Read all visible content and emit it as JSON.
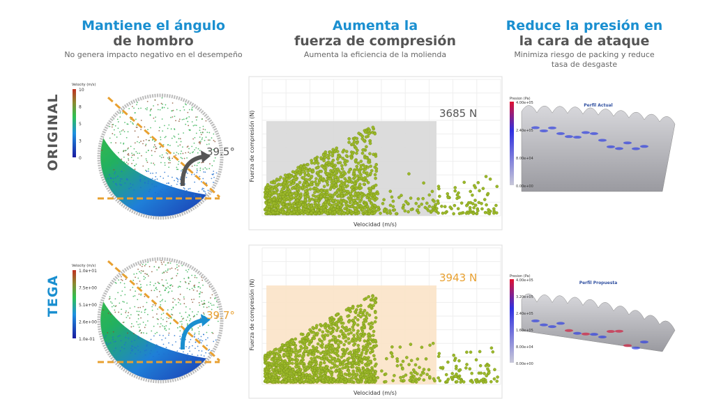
{
  "header": {
    "columns": [
      {
        "title_line1": "Mantiene el ángulo",
        "title_line2": "de hombro",
        "subtitle": "No genera impacto negativo en el desempeño"
      },
      {
        "title_line1": "Aumenta la",
        "title_line2": "fuerza de compresión",
        "subtitle": "Aumenta la eficiencia de la molienda"
      },
      {
        "title_line1": "Reduce la presión en",
        "title_line2": "la cara de ataque",
        "subtitle": "Minimiza riesgo de packing y reduce tasa de desgaste"
      }
    ]
  },
  "plot_axes": {
    "y_label": "Fuerza de compresión (N)",
    "x_label": "Velocidad (m/s)"
  },
  "rows": [
    {
      "label": "ORIGINAL",
      "angle": "39.5°",
      "force": "3685 N",
      "velocity_legend": {
        "title": "Velocity (m/s)",
        "ticks": [
          "10",
          "8",
          "5",
          "3",
          "0"
        ]
      },
      "pressure_legend": {
        "title": "Presion (Pa)",
        "ticks": [
          "4.00e+05",
          "2.40e+05",
          "8.00e+04",
          "0.00e+00"
        ]
      },
      "profile_title": "Perfil Actual"
    },
    {
      "label": "TEGA",
      "angle": "39.7°",
      "force": "3943 N",
      "velocity_legend": {
        "title": "Velocity (m/s)",
        "ticks": [
          "1.0e+01",
          "7.5e+00",
          "5.1e+00",
          "2.6e+00",
          "1.0e-01"
        ]
      },
      "pressure_legend": {
        "title": "Presion (Pa)",
        "ticks": [
          "4.00e+05",
          "3.20e+05",
          "2.40e+05",
          "1.60e+05",
          "8.00e+04",
          "0.00e+00"
        ]
      },
      "profile_title": "Perfil Propuesta"
    }
  ]
}
